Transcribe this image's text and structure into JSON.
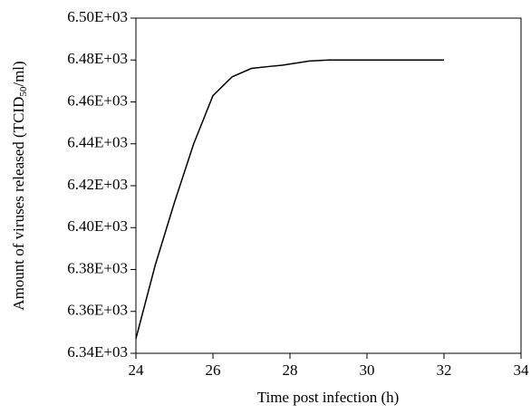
{
  "chart_data": {
    "type": "line",
    "x_label": "Time post infection (h)",
    "y_label_parts": [
      "Amount of viruses released (TCID",
      "50",
      "/ml)"
    ],
    "series": [
      {
        "color": "#000000",
        "x": [
          24,
          24.5,
          25,
          25.5,
          26,
          26.5,
          27,
          27.5,
          27.8,
          28.5,
          29,
          30,
          31,
          32
        ],
        "values": [
          6347,
          6382,
          6412,
          6440,
          6463,
          6472,
          6476,
          6477,
          6477.5,
          6479.5,
          6480,
          6480,
          6480,
          6480
        ]
      }
    ],
    "xlim": [
      24,
      34
    ],
    "xticks": [
      24,
      26,
      28,
      30,
      32,
      34
    ],
    "ylim": [
      6340,
      6500
    ],
    "yticks": [
      {
        "value": 6340,
        "label": "6.34E+03"
      },
      {
        "value": 6360,
        "label": "6.36E+03"
      },
      {
        "value": 6380,
        "label": "6.38E+03"
      },
      {
        "value": 6400,
        "label": "6.40E+03"
      },
      {
        "value": 6420,
        "label": "6.42E+03"
      },
      {
        "value": 6440,
        "label": "6.44E+03"
      },
      {
        "value": 6460,
        "label": "6.46E+03"
      },
      {
        "value": 6480,
        "label": "6.48E+03"
      },
      {
        "value": 6500,
        "label": "6.50E+03"
      }
    ],
    "grid": false
  }
}
